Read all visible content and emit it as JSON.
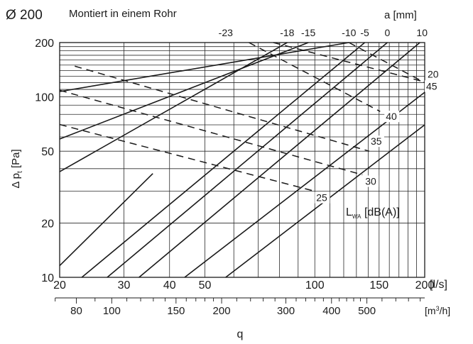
{
  "chart_data": {
    "type": "line",
    "scale": "log-log",
    "diameter_label": "Ø 200",
    "title": "Montiert in einem Rohr",
    "top_axis_label": "a [mm]",
    "top_tick_labels": [
      "-23",
      "-18",
      "-15",
      "-10",
      "-5",
      "0",
      "10"
    ],
    "ylabel_parts": [
      "Δ p",
      "t",
      " [Pa]"
    ],
    "y_ticks": [
      10,
      20,
      50,
      100,
      200
    ],
    "ylim": [
      10,
      200
    ],
    "xlim": [
      20,
      200
    ],
    "x_ticks_ls": [
      20,
      30,
      40,
      50,
      100,
      150,
      200
    ],
    "x_unit_ls": "[l/s]",
    "x_ticks_m3h": [
      80,
      100,
      150,
      200,
      300,
      400,
      500
    ],
    "x_unit_m3h_parts": [
      "[m",
      "3",
      "/h]"
    ],
    "xlabel": "q",
    "legend_parts": [
      "L",
      "WA",
      " [dB(A)]"
    ],
    "grid": true,
    "damper_series": [
      {
        "name": "-23",
        "points": [
          [
            20,
            11.6
          ],
          [
            36,
            37.6
          ],
          [
            57,
            200
          ]
        ]
      },
      {
        "name": "-18",
        "points": [
          [
            20,
            38.5
          ],
          [
            84,
            200
          ]
        ]
      },
      {
        "name": "-15",
        "points": [
          [
            20,
            58.4
          ],
          [
            96,
            200
          ]
        ]
      },
      {
        "name": "-10",
        "points": [
          [
            20,
            107
          ],
          [
            124,
            200
          ]
        ]
      },
      {
        "name": "-5",
        "points": [
          [
            23,
            10
          ],
          [
            137,
            200
          ]
        ]
      },
      {
        "name": "0",
        "points": [
          [
            27,
            10
          ],
          [
            158,
            200
          ]
        ]
      },
      {
        "name": "10",
        "points": [
          [
            33,
            10
          ],
          [
            194,
            200
          ]
        ]
      },
      {
        "name": "",
        "points": [
          [
            44,
            10
          ],
          [
            200,
            106
          ]
        ]
      },
      {
        "name": "",
        "points": [
          [
            57,
            10
          ],
          [
            200,
            70
          ]
        ]
      }
    ],
    "sound_series": [
      {
        "name": "20",
        "points": [
          [
            77,
            200
          ],
          [
            200,
            121
          ]
        ]
      },
      {
        "name": "25",
        "points": [
          [
            20,
            70.3
          ],
          [
            100,
            30
          ]
        ]
      },
      {
        "name": "30",
        "points": [
          [
            20,
            108.8
          ],
          [
            135,
            37
          ]
        ]
      },
      {
        "name": "35",
        "points": [
          [
            22,
            148
          ],
          [
            141,
            50
          ]
        ]
      },
      {
        "name": "40",
        "points": [
          [
            66,
            200
          ],
          [
            151,
            83
          ]
        ]
      },
      {
        "name": "45",
        "points": [
          [
            124,
            200
          ],
          [
            200,
            120
          ]
        ]
      }
    ]
  }
}
